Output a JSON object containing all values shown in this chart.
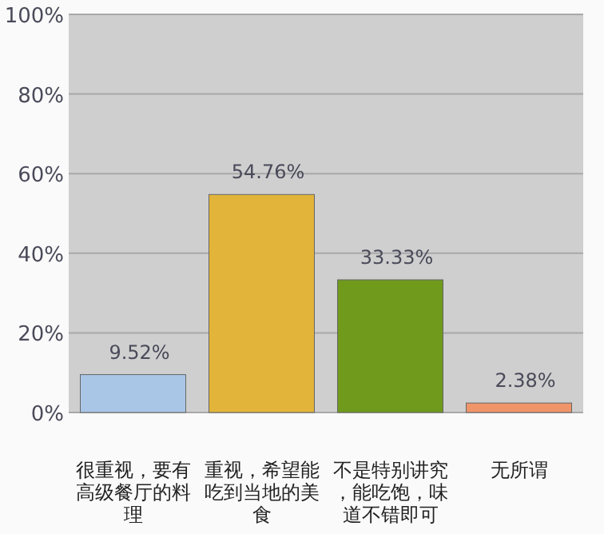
{
  "chart_data": {
    "type": "bar",
    "categories": [
      "很重视，要有高级餐厅的料理",
      "重视，希望能吃到当地的美食",
      "不是特别讲究，能吃饱，味道不错即可",
      "无所谓"
    ],
    "values": [
      9.52,
      54.76,
      33.33,
      2.38
    ],
    "colors": [
      "#a9c6e6",
      "#e2b43a",
      "#6f9a1c",
      "#f0946a"
    ],
    "value_labels": [
      "9.52%",
      "54.76%",
      "33.33%",
      "2.38%"
    ],
    "ylim": [
      0,
      100
    ],
    "yticks": [
      {
        "value": 0,
        "label": "0%"
      },
      {
        "value": 20,
        "label": "20%"
      },
      {
        "value": 40,
        "label": "40%"
      },
      {
        "value": 60,
        "label": "60%"
      },
      {
        "value": 80,
        "label": "80%"
      },
      {
        "value": 100,
        "label": "100%"
      }
    ],
    "grid": "y"
  }
}
